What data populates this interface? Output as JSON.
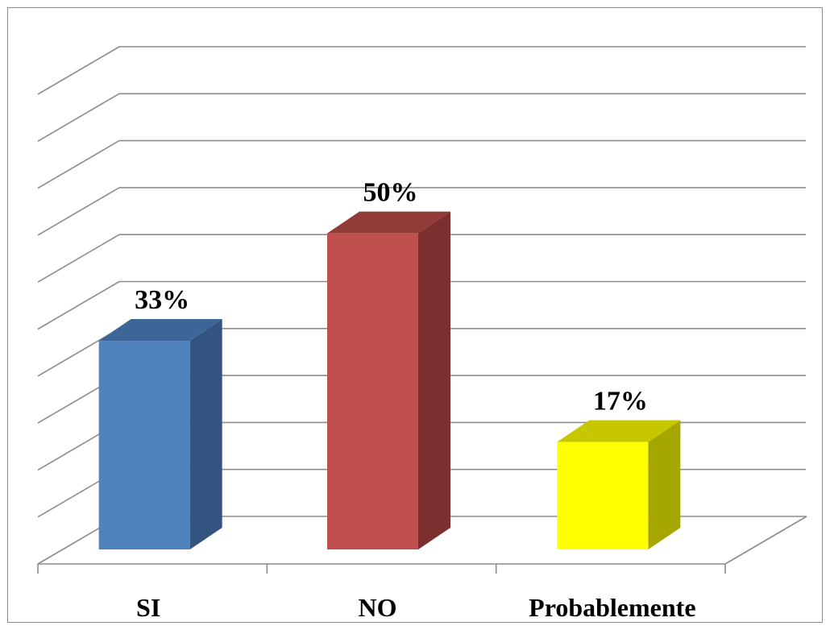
{
  "chart_data": {
    "type": "bar",
    "style": "3d-column",
    "title": "",
    "xlabel": "",
    "ylabel": "",
    "categories": [
      "SI",
      "NO",
      "Probablemente"
    ],
    "values": [
      33,
      50,
      17
    ],
    "value_labels": [
      "33%",
      "50%",
      "17%"
    ],
    "ylim": [
      0,
      50
    ],
    "grid": true,
    "legend": "none",
    "colors": [
      {
        "front": "#4f81bd",
        "side": "#335480",
        "top": "#3d6597"
      },
      {
        "front": "#c0504d",
        "side": "#7b2f2e",
        "top": "#923c3a"
      },
      {
        "front": "#ffff00",
        "side": "#a6a600",
        "top": "#c7c700"
      }
    ]
  }
}
